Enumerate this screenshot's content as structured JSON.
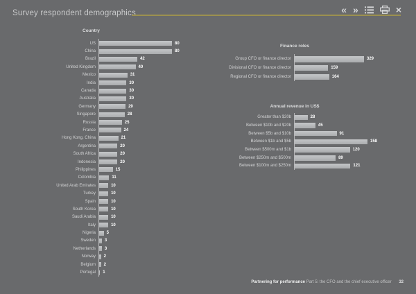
{
  "header": {
    "title": "Survey respondent demographics"
  },
  "toolbar": {
    "prev_glyph": "«",
    "next_glyph": "»",
    "close_glyph": "×"
  },
  "colors": {
    "background": "#696a6c",
    "bar_fill": "#b9bbbd",
    "accent_rule": "#9c914f",
    "value_text": "#ffffff",
    "label_text": "#d2d3d4"
  },
  "chart_data": [
    {
      "type": "bar",
      "orientation": "horizontal",
      "title": "Country",
      "categories": [
        "US",
        "China",
        "Brazil",
        "United Kingdom",
        "Mexico",
        "India",
        "Canada",
        "Australia",
        "Germany",
        "Singapore",
        "Russia",
        "France",
        "Hong Kong, China",
        "Argentina",
        "South Africa",
        "Indonesia",
        "Philippines",
        "Colombia",
        "United Arab Emirates",
        "Turkey",
        "Spain",
        "South Korea",
        "Saudi Arabia",
        "Italy",
        "Nigeria",
        "Sweden",
        "Netherlands",
        "Norway",
        "Belgium",
        "Portugal"
      ],
      "values": [
        80,
        80,
        42,
        40,
        31,
        30,
        30,
        30,
        29,
        28,
        25,
        24,
        21,
        20,
        20,
        20,
        15,
        11,
        10,
        10,
        10,
        10,
        10,
        10,
        5,
        3,
        3,
        2,
        2,
        1
      ],
      "xlim": [
        0,
        80
      ],
      "grid": false,
      "value_labels": true
    },
    {
      "type": "bar",
      "orientation": "horizontal",
      "title": "Finance roles",
      "categories": [
        "Group CFO or finance director",
        "Divisional CFO or finance director",
        "Regional CFO or finance director"
      ],
      "values": [
        329,
        159,
        164
      ],
      "xlim": [
        0,
        329
      ],
      "grid": false,
      "value_labels": true
    },
    {
      "type": "bar",
      "orientation": "horizontal",
      "title": "Annual revenue in US$",
      "categories": [
        "Greater than $20b",
        "Between $10b and $20b",
        "Between $5b and $10b",
        "Between $1b and $5b",
        "Between $500m and $1b",
        "Between $250m and $500m",
        "Between $100m and $250m"
      ],
      "values": [
        28,
        45,
        91,
        158,
        120,
        89,
        121
      ],
      "xlim": [
        0,
        158
      ],
      "grid": false,
      "value_labels": true
    }
  ],
  "footer": {
    "brand": "Partnering for performance",
    "rest": "Part 5: the CFO and the chief executive officer",
    "page": "32"
  }
}
